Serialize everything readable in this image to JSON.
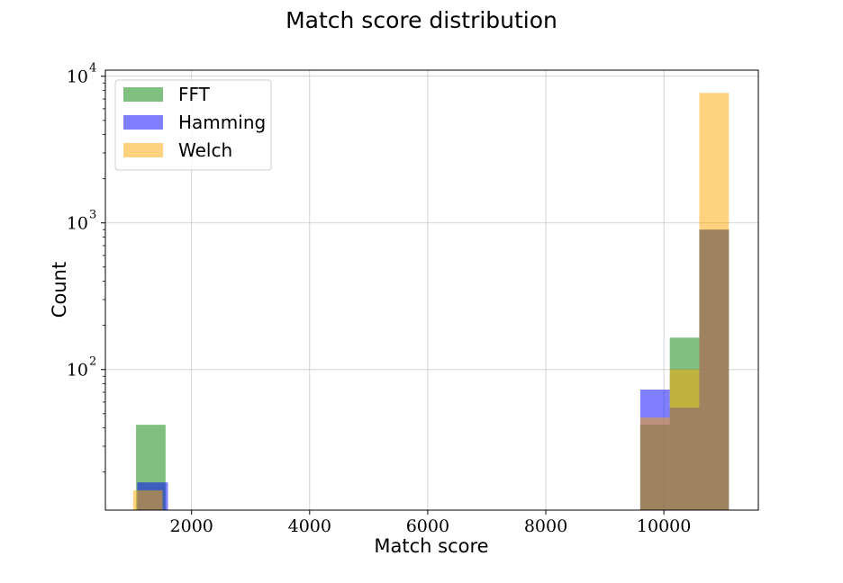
{
  "chart_data": {
    "type": "bar",
    "title": "Match score distribution",
    "xlabel": "Match score",
    "ylabel": "Count",
    "xscale": "linear",
    "yscale": "log",
    "xlim": [
      540,
      11600
    ],
    "ylim": [
      11,
      11000
    ],
    "xticks": [
      2000,
      4000,
      6000,
      8000,
      10000
    ],
    "yticks": [
      {
        "value": 100,
        "base": "10",
        "exp": "2"
      },
      {
        "value": 1000,
        "base": "10",
        "exp": "3"
      },
      {
        "value": 10000,
        "base": "10",
        "exp": "4"
      }
    ],
    "grid": true,
    "legend_position": "top-left",
    "series": [
      {
        "name": "FFT",
        "color": "#008000",
        "opacity": 0.5,
        "bins": [
          {
            "x0": 1060,
            "x1": 1560,
            "count": 42
          },
          {
            "x0": 9600,
            "x1": 10100,
            "count": 42
          },
          {
            "x0": 10100,
            "x1": 10600,
            "count": 165
          },
          {
            "x0": 10600,
            "x1": 11100,
            "count": 900
          }
        ]
      },
      {
        "name": "Hamming",
        "color": "#0000ff",
        "opacity": 0.5,
        "bins": [
          {
            "x0": 1080,
            "x1": 1600,
            "count": 17
          },
          {
            "x0": 9600,
            "x1": 10100,
            "count": 73
          },
          {
            "x0": 10100,
            "x1": 10600,
            "count": 55
          },
          {
            "x0": 10600,
            "x1": 11100,
            "count": 900
          }
        ]
      },
      {
        "name": "Welch",
        "color": "#ffa500",
        "opacity": 0.5,
        "bins": [
          {
            "x0": 1010,
            "x1": 1510,
            "count": 15
          },
          {
            "x0": 9600,
            "x1": 10100,
            "count": 47
          },
          {
            "x0": 10100,
            "x1": 10600,
            "count": 100
          },
          {
            "x0": 10600,
            "x1": 11100,
            "count": 7700
          }
        ]
      }
    ]
  }
}
